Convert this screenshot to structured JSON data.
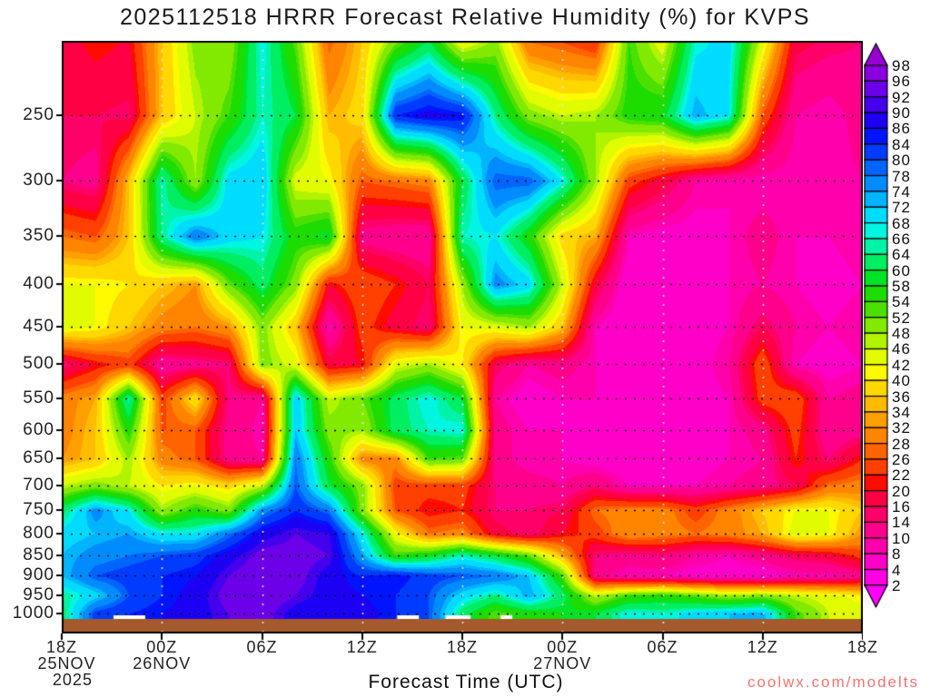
{
  "title": "2025112518 HRRR Forecast Relative Humidity (%) for KVPS",
  "watermark": "coolwx.com/modelts",
  "watermark_color": "#F87070",
  "chart_data": {
    "type": "heatmap",
    "title": "2025112518 HRRR Forecast Relative Humidity (%) for KVPS",
    "xlabel": "Forecast Time (UTC)",
    "ylabel": "",
    "x_axis": {
      "label": "Forecast Time (UTC)",
      "hour_range": [
        0,
        48
      ],
      "ticks": [
        {
          "hour": 0,
          "label": "18Z"
        },
        {
          "hour": 6,
          "label": "00Z"
        },
        {
          "hour": 12,
          "label": "06Z"
        },
        {
          "hour": 18,
          "label": "12Z"
        },
        {
          "hour": 24,
          "label": "18Z"
        },
        {
          "hour": 30,
          "label": "00Z"
        },
        {
          "hour": 36,
          "label": "06Z"
        },
        {
          "hour": 42,
          "label": "12Z"
        },
        {
          "hour": 48,
          "label": "18Z"
        }
      ],
      "date_labels": [
        {
          "label": "25NOV",
          "hour": 0.3,
          "row": 1
        },
        {
          "label": "2025",
          "hour": 0.65,
          "row": 2
        },
        {
          "label": "26NOV",
          "hour": 6,
          "row": 1
        },
        {
          "label": "27NOV",
          "hour": 30,
          "row": 1
        }
      ]
    },
    "y_axis": {
      "scale": "log-pressure",
      "top_pressure": 203,
      "bottom_pressure": 1058,
      "tick_pressures": [
        250,
        300,
        350,
        400,
        450,
        500,
        550,
        600,
        650,
        700,
        750,
        800,
        850,
        900,
        950,
        1000
      ]
    },
    "grid_on": true,
    "colorbar": {
      "position": "right",
      "tick_labels_top_down": [
        98,
        96,
        92,
        90,
        86,
        84,
        80,
        78,
        74,
        72,
        68,
        66,
        64,
        60,
        58,
        54,
        52,
        48,
        46,
        42,
        40,
        36,
        34,
        32,
        28,
        26,
        22,
        20,
        16,
        14,
        10,
        8,
        4,
        2
      ],
      "levels_ascending": [
        2,
        4,
        8,
        10,
        14,
        16,
        20,
        22,
        26,
        28,
        32,
        34,
        36,
        40,
        42,
        46,
        48,
        52,
        54,
        58,
        60,
        64,
        66,
        68,
        72,
        74,
        78,
        80,
        84,
        86,
        90,
        92,
        96,
        98
      ],
      "colors_low_to_high": [
        "#FF00FC",
        "#FF00E4",
        "#FF00C8",
        "#FF00AC",
        "#FF008C",
        "#FF0068",
        "#FF0044",
        "#FF0C00",
        "#FF4000",
        "#FF6400",
        "#FF8400",
        "#FFA000",
        "#FFBC00",
        "#FFD800",
        "#FFFA00",
        "#E2FC00",
        "#B2F400",
        "#82EA00",
        "#4CE000",
        "#1CDC00",
        "#00E428",
        "#00EE62",
        "#00F4A8",
        "#00F6E0",
        "#00DCFF",
        "#00B4FF",
        "#008CFF",
        "#0064FF",
        "#003CFF",
        "#0014FF",
        "#1C00F4",
        "#4400EE",
        "#6C00E8",
        "#8A00E0",
        "#9800D4"
      ]
    },
    "ground": {
      "color": "#A45A2C",
      "top_pressure": 1015
    },
    "surface_saturated_white_patches_hours": [
      [
        3.1,
        5.0
      ],
      [
        20.1,
        21.4
      ],
      [
        23.0,
        24.5
      ],
      [
        26.3,
        27.0
      ]
    ],
    "grid": {
      "hours": [
        0,
        2,
        4,
        6,
        8,
        10,
        12,
        14,
        16,
        18,
        20,
        22,
        24,
        26,
        28,
        30,
        32,
        34,
        36,
        38,
        40,
        42,
        44,
        46,
        48
      ],
      "pressures": [
        200,
        250,
        300,
        350,
        400,
        450,
        500,
        550,
        600,
        650,
        700,
        750,
        800,
        850,
        900,
        950,
        1000
      ],
      "rh_values": [
        [
          18,
          22,
          20,
          36,
          50,
          48,
          68,
          52,
          26,
          36,
          48,
          58,
          38,
          48,
          26,
          24,
          20,
          54,
          42,
          66,
          70,
          46,
          18,
          16,
          14
        ],
        [
          16,
          16,
          15,
          36,
          46,
          54,
          66,
          60,
          34,
          38,
          84,
          88,
          86,
          64,
          50,
          46,
          48,
          56,
          58,
          74,
          68,
          26,
          10,
          8,
          12
        ],
        [
          14,
          12,
          36,
          66,
          48,
          70,
          72,
          44,
          42,
          26,
          28,
          30,
          60,
          80,
          80,
          68,
          48,
          24,
          18,
          10,
          8,
          8,
          8,
          8,
          10
        ],
        [
          28,
          26,
          36,
          64,
          78,
          70,
          68,
          56,
          60,
          12,
          10,
          10,
          66,
          68,
          56,
          38,
          34,
          8,
          6,
          6,
          8,
          12,
          8,
          8,
          10
        ],
        [
          42,
          42,
          40,
          36,
          32,
          52,
          62,
          50,
          20,
          26,
          22,
          16,
          48,
          76,
          70,
          46,
          18,
          4,
          6,
          6,
          8,
          10,
          8,
          6,
          8
        ],
        [
          44,
          42,
          36,
          30,
          28,
          32,
          50,
          36,
          8,
          24,
          18,
          14,
          42,
          44,
          48,
          36,
          8,
          4,
          6,
          6,
          8,
          16,
          10,
          8,
          10
        ],
        [
          14,
          20,
          24,
          10,
          12,
          14,
          50,
          44,
          18,
          20,
          44,
          48,
          40,
          16,
          10,
          12,
          8,
          6,
          4,
          6,
          10,
          26,
          8,
          6,
          8
        ],
        [
          30,
          34,
          66,
          24,
          40,
          13,
          10,
          72,
          46,
          52,
          62,
          68,
          60,
          10,
          5,
          8,
          8,
          4,
          6,
          6,
          8,
          24,
          26,
          10,
          12
        ],
        [
          30,
          36,
          56,
          26,
          26,
          12,
          9,
          72,
          50,
          48,
          62,
          66,
          68,
          12,
          8,
          8,
          6,
          4,
          6,
          6,
          8,
          12,
          24,
          10,
          12
        ],
        [
          32,
          36,
          48,
          30,
          26,
          12,
          10,
          78,
          56,
          30,
          30,
          54,
          52,
          12,
          8,
          8,
          6,
          4,
          6,
          6,
          8,
          10,
          22,
          14,
          22
        ],
        [
          46,
          50,
          46,
          40,
          42,
          38,
          46,
          80,
          60,
          50,
          24,
          24,
          24,
          14,
          12,
          10,
          14,
          8,
          8,
          8,
          10,
          12,
          16,
          28,
          30
        ],
        [
          62,
          76,
          68,
          48,
          56,
          50,
          76,
          84,
          78,
          50,
          26,
          20,
          22,
          14,
          14,
          16,
          28,
          30,
          30,
          24,
          30,
          36,
          42,
          42,
          36
        ],
        [
          70,
          72,
          74,
          68,
          68,
          78,
          88,
          92,
          90,
          68,
          42,
          28,
          30,
          18,
          14,
          20,
          24,
          32,
          30,
          28,
          30,
          34,
          44,
          42,
          32
        ],
        [
          72,
          76,
          78,
          80,
          82,
          88,
          94,
          94,
          92,
          74,
          54,
          58,
          66,
          60,
          52,
          34,
          14,
          12,
          14,
          10,
          8,
          12,
          16,
          18,
          24
        ],
        [
          72,
          80,
          82,
          84,
          86,
          92,
          96,
          94,
          88,
          84,
          86,
          82,
          80,
          78,
          72,
          54,
          12,
          8,
          8,
          6,
          6,
          5,
          8,
          8,
          12
        ],
        [
          64,
          70,
          80,
          84,
          88,
          94,
          96,
          92,
          88,
          86,
          84,
          80,
          70,
          64,
          74,
          62,
          46,
          54,
          56,
          52,
          48,
          50,
          46,
          44,
          40
        ],
        [
          62,
          82,
          84,
          86,
          88,
          92,
          94,
          88,
          86,
          88,
          84,
          80,
          62,
          52,
          56,
          58,
          60,
          68,
          66,
          70,
          72,
          74,
          54,
          46,
          44
        ]
      ]
    },
    "gridline_style": {
      "horizontal_color": "#000000",
      "vertical_color": "#E6E6E6",
      "dotted": true
    }
  }
}
